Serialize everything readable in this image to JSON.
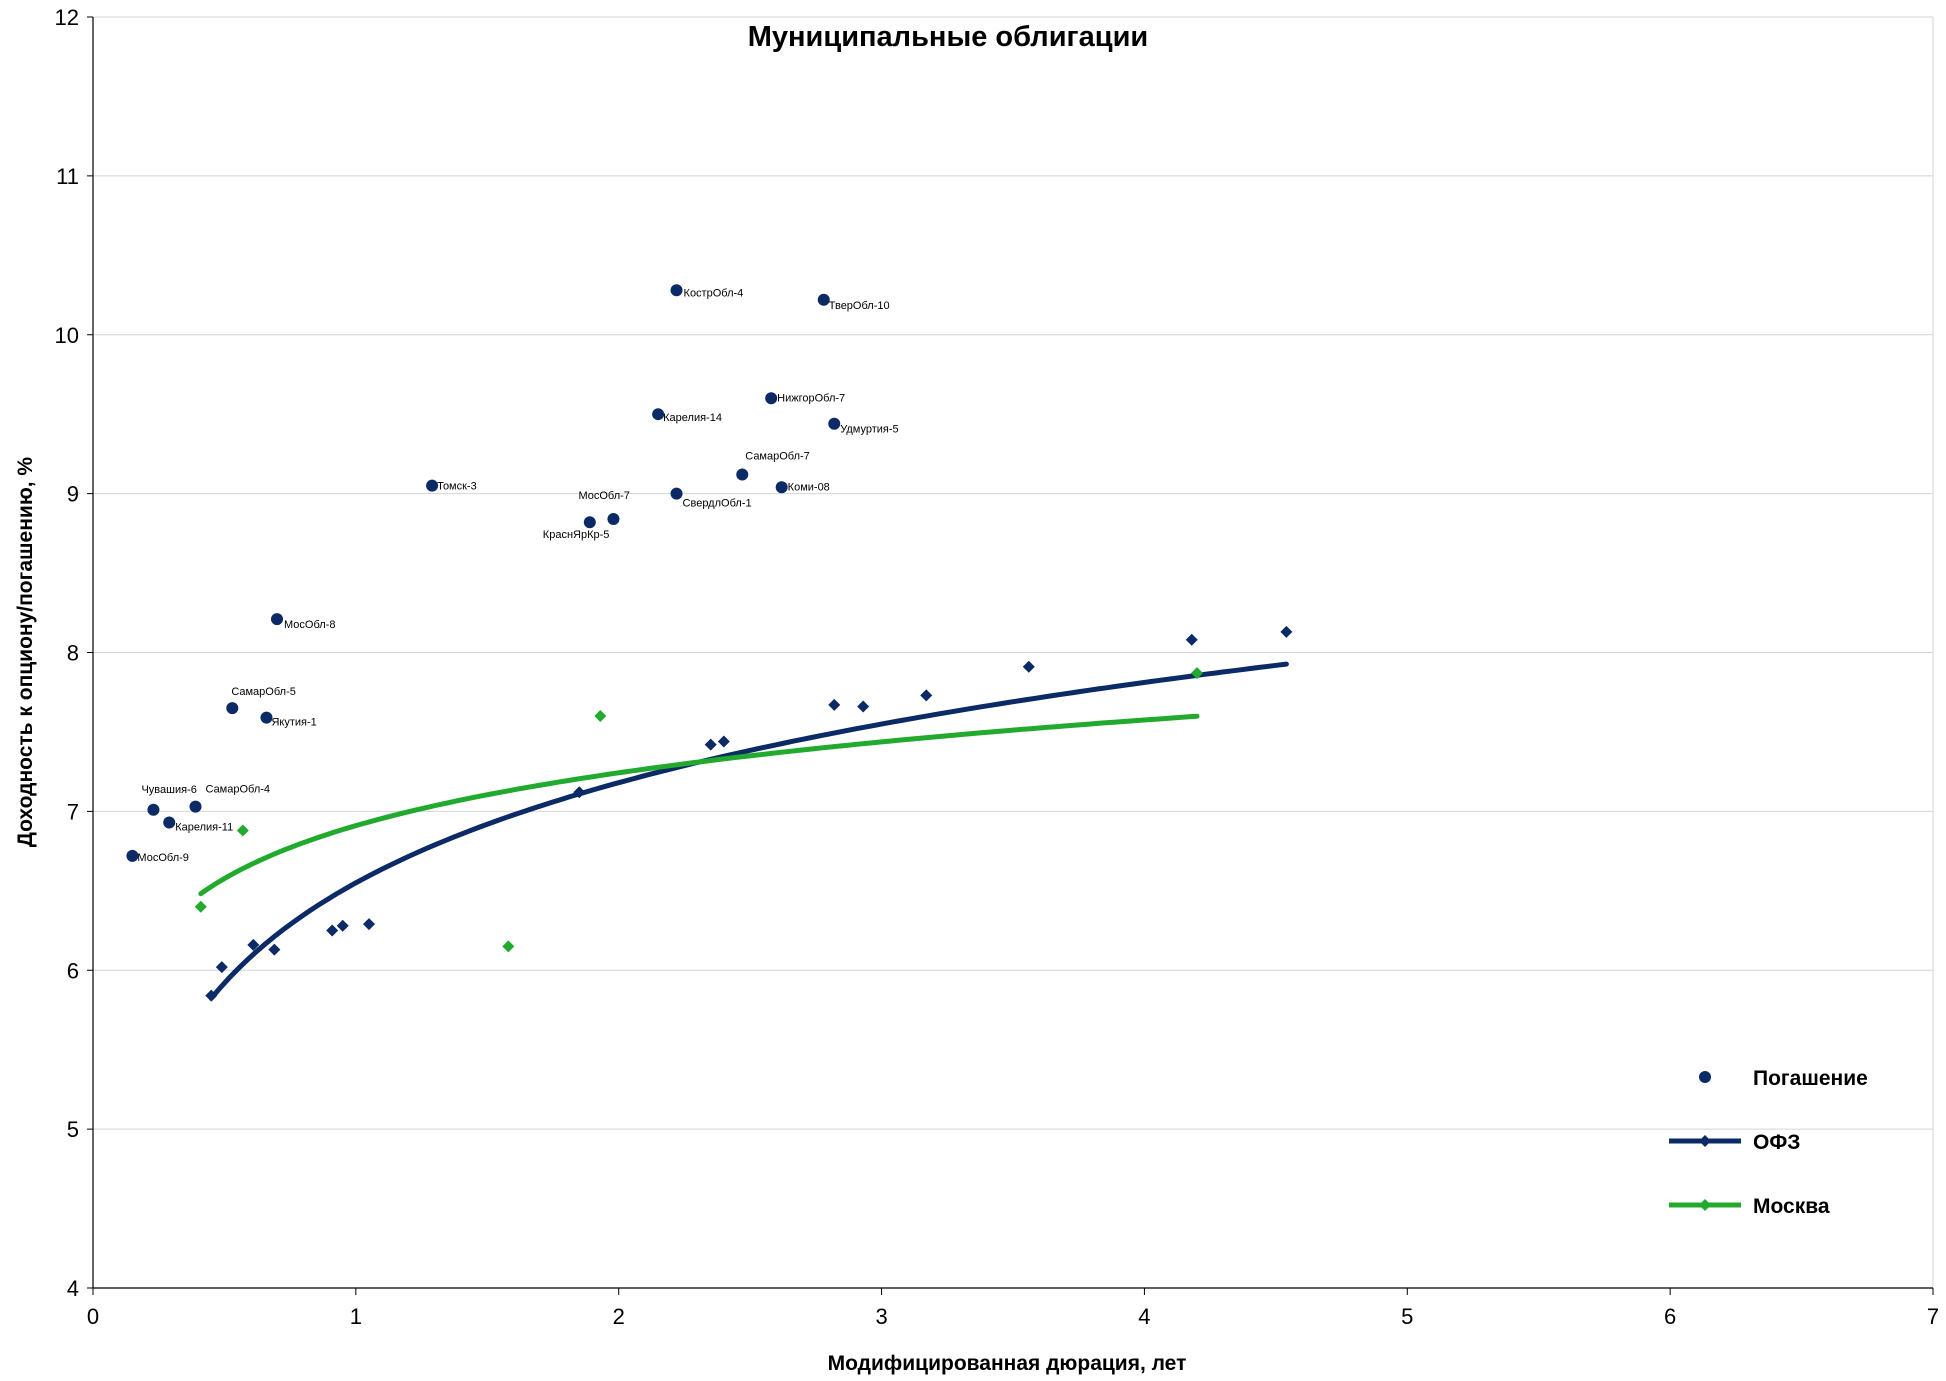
{
  "chart_data": {
    "type": "scatter",
    "title": "Муниципальные облигации",
    "xlabel": "Модифицированная дюрация, лет",
    "ylabel": "Доходность к опциону/погашению, %",
    "xlim": [
      0,
      7
    ],
    "ylim": [
      4,
      12
    ],
    "x_ticks": [
      "0",
      "1",
      "2",
      "3",
      "4",
      "5",
      "6",
      "7"
    ],
    "y_ticks": [
      "4",
      "5",
      "6",
      "7",
      "8",
      "9",
      "10",
      "11",
      "12"
    ],
    "grid": "horizontal",
    "legend_position": "bottom-right",
    "colors": {
      "pogashenie": "#0b2a66",
      "ofz": "#0b2a66",
      "moskva": "#22aa2e",
      "grid": "#d4d4d4"
    },
    "series": [
      {
        "name": "Погашение",
        "marker": "circle",
        "points": [
          {
            "x": 0.15,
            "y": 6.72,
            "label": "МосОбл-9"
          },
          {
            "x": 0.23,
            "y": 7.01,
            "label": "Чувашия-6"
          },
          {
            "x": 0.29,
            "y": 6.93,
            "label": "Карелия-11"
          },
          {
            "x": 0.39,
            "y": 7.03,
            "label": "СамарОбл-4"
          },
          {
            "x": 0.53,
            "y": 7.65,
            "label": "СамарОбл-5"
          },
          {
            "x": 0.66,
            "y": 7.59,
            "label": "Якутия-1"
          },
          {
            "x": 0.7,
            "y": 8.21,
            "label": "МосОбл-8"
          },
          {
            "x": 1.29,
            "y": 9.05,
            "label": "Томск-3"
          },
          {
            "x": 1.89,
            "y": 8.82,
            "label": "КраснЯрКр-5"
          },
          {
            "x": 1.98,
            "y": 8.84,
            "label": "МосОбл-7"
          },
          {
            "x": 2.15,
            "y": 9.5,
            "label": "Карелия-14"
          },
          {
            "x": 2.22,
            "y": 10.28,
            "label": "КострОбл-4"
          },
          {
            "x": 2.22,
            "y": 9.0,
            "label": "СвердлОбл-1"
          },
          {
            "x": 2.47,
            "y": 9.12,
            "label": "СамарОбл-7"
          },
          {
            "x": 2.58,
            "y": 9.6,
            "label": "НижгорОбл-7"
          },
          {
            "x": 2.62,
            "y": 9.04,
            "label": "Коми-08"
          },
          {
            "x": 2.78,
            "y": 10.22,
            "label": "ТверОбл-10"
          },
          {
            "x": 2.82,
            "y": 9.44,
            "label": "Удмуртия-5"
          }
        ]
      },
      {
        "name": "ОФЗ",
        "marker": "diamond",
        "points": [
          {
            "x": 0.45,
            "y": 5.84
          },
          {
            "x": 0.49,
            "y": 6.02
          },
          {
            "x": 0.61,
            "y": 6.16
          },
          {
            "x": 0.69,
            "y": 6.13
          },
          {
            "x": 0.91,
            "y": 6.25
          },
          {
            "x": 0.95,
            "y": 6.28
          },
          {
            "x": 1.05,
            "y": 6.29
          },
          {
            "x": 1.85,
            "y": 7.12
          },
          {
            "x": 2.35,
            "y": 7.42
          },
          {
            "x": 2.4,
            "y": 7.44
          },
          {
            "x": 2.82,
            "y": 7.67
          },
          {
            "x": 2.93,
            "y": 7.66
          },
          {
            "x": 3.17,
            "y": 7.73
          },
          {
            "x": 3.56,
            "y": 7.91
          },
          {
            "x": 4.18,
            "y": 8.08
          },
          {
            "x": 4.54,
            "y": 8.13
          }
        ],
        "trend": {
          "type": "log",
          "x_from": 0.45,
          "x_to": 4.54,
          "a": 6.55,
          "b": 0.91
        }
      },
      {
        "name": "Москва",
        "marker": "diamond",
        "points": [
          {
            "x": 0.41,
            "y": 6.4
          },
          {
            "x": 0.57,
            "y": 6.88
          },
          {
            "x": 1.58,
            "y": 6.15
          },
          {
            "x": 1.93,
            "y": 7.6
          },
          {
            "x": 4.2,
            "y": 7.87
          }
        ],
        "trend": {
          "type": "log",
          "x_from": 0.41,
          "x_to": 4.2,
          "a": 6.91,
          "b": 0.48
        }
      }
    ]
  }
}
